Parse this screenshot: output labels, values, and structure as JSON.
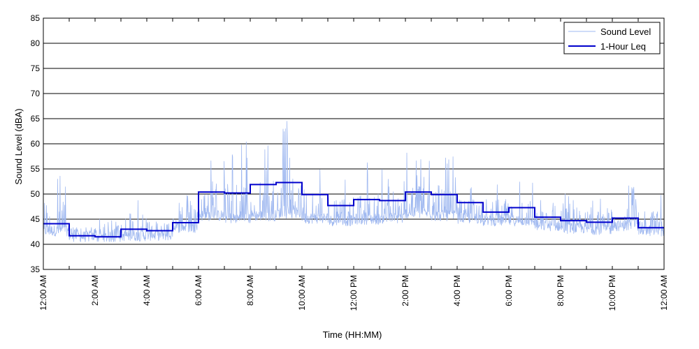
{
  "chart_data": {
    "type": "line",
    "title": "",
    "xlabel": "Time (HH:MM)",
    "ylabel": "Sound Level (dBA)",
    "ylim": [
      35,
      85
    ],
    "yticks": [
      35,
      40,
      45,
      50,
      55,
      60,
      65,
      70,
      75,
      80,
      85
    ],
    "xlim_hours": [
      0,
      24
    ],
    "xtick_labels": [
      "12:00 AM",
      "2:00 AM",
      "4:00 AM",
      "6:00 AM",
      "8:00 AM",
      "10:00 AM",
      "12:00 PM",
      "2:00 PM",
      "4:00 PM",
      "6:00 PM",
      "8:00 PM",
      "10:00 PM",
      "12:00 AM"
    ],
    "grid": "horizontal",
    "legend_position": "top-right",
    "series": [
      {
        "name": "Sound Level",
        "color": "#9fb8f0",
        "style": "thin noisy line",
        "hourly_baseline": [
          42.5,
          41.3,
          41.2,
          41.5,
          41.6,
          43.2,
          45.5,
          45.0,
          45.5,
          46.0,
          45.0,
          44.5,
          44.8,
          45.0,
          46.0,
          45.5,
          45.0,
          44.5,
          44.5,
          43.5,
          43.0,
          42.8,
          43.5,
          42.5
        ],
        "hourly_peak": [
          56,
          43,
          45,
          52,
          46,
          50,
          58,
          61,
          63,
          65,
          60,
          54,
          57,
          55,
          59,
          61,
          52,
          53,
          53,
          49,
          51,
          51,
          52,
          50
        ]
      },
      {
        "name": "1-Hour Leq",
        "color": "#0000cc",
        "style": "step",
        "hours": [
          0,
          1,
          2,
          3,
          4,
          5,
          6,
          7,
          8,
          9,
          10,
          11,
          12,
          13,
          14,
          15,
          16,
          17,
          18,
          19,
          20,
          21,
          22,
          23
        ],
        "values": [
          44.1,
          41.7,
          41.5,
          43.0,
          42.7,
          44.3,
          50.4,
          50.2,
          51.9,
          52.3,
          49.9,
          47.7,
          48.9,
          48.7,
          50.4,
          49.9,
          48.3,
          46.4,
          47.3,
          45.4,
          44.7,
          44.4,
          45.2,
          43.3
        ]
      }
    ]
  }
}
